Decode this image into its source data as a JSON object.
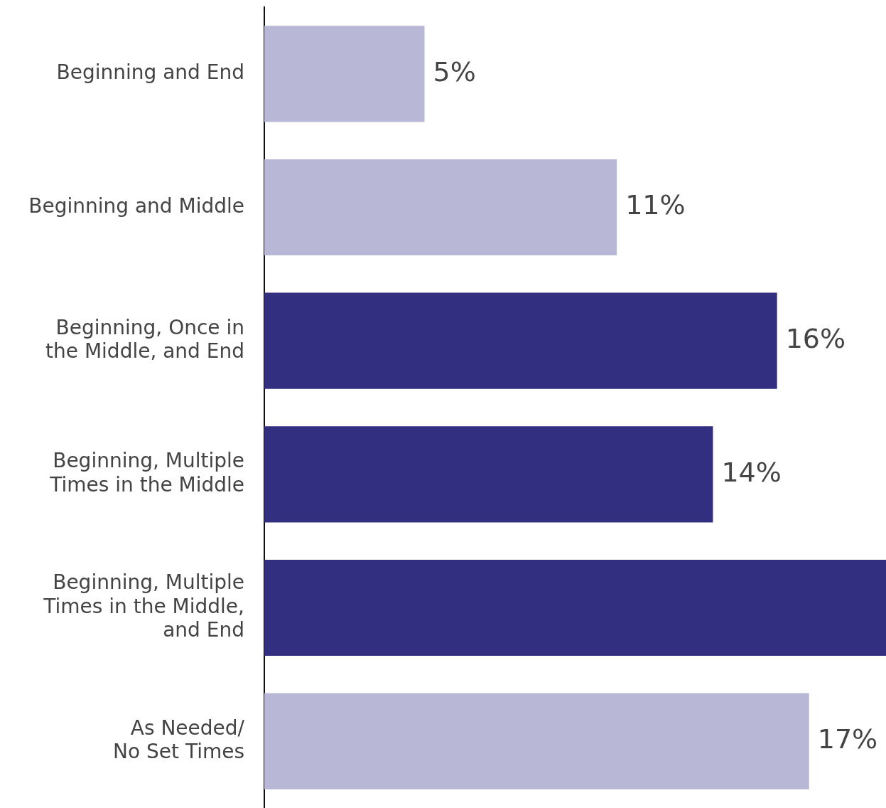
{
  "chart_data": {
    "type": "bar",
    "orientation": "horizontal",
    "categories": [
      "Beginning and End",
      "Beginning and Middle",
      "Beginning, Once in the Middle, and End",
      "Beginning, Multiple Times in the Middle",
      "Beginning, Multiple Times in the Middle, and End",
      "As Needed/ No Set Times"
    ],
    "values": [
      5,
      11,
      16,
      14,
      19.4,
      17
    ],
    "colors": [
      "#b8b8d6",
      "#b8b8d6",
      "#332f80",
      "#332f80",
      "#332f80",
      "#b8b8d6"
    ],
    "value_labels": [
      "5%",
      "11%",
      "16%",
      "14%",
      null,
      "17%"
    ],
    "xlim": [
      0,
      19.4
    ]
  }
}
